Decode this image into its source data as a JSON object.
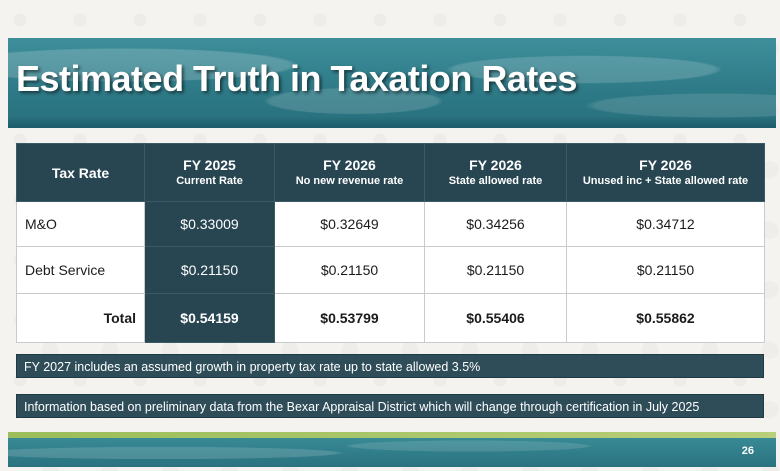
{
  "slide": {
    "title": "Estimated Truth in Taxation Rates",
    "page_number": "26"
  },
  "table": {
    "headers": [
      {
        "main": "Tax Rate",
        "sub": ""
      },
      {
        "main": "FY 2025",
        "sub": "Current Rate"
      },
      {
        "main": "FY 2026",
        "sub": "No new revenue rate"
      },
      {
        "main": "FY 2026",
        "sub": "State allowed rate"
      },
      {
        "main": "FY 2026",
        "sub": "Unused inc + State allowed rate"
      }
    ],
    "rows": [
      {
        "label": "M&O",
        "values": [
          "$0.33009",
          "$0.32649",
          "$0.34256",
          "$0.34712"
        ]
      },
      {
        "label": "Debt Service",
        "values": [
          "$0.21150",
          "$0.21150",
          "$0.21150",
          "$0.21150"
        ]
      },
      {
        "label": "Total",
        "values": [
          "$0.54159",
          "$0.53799",
          "$0.55406",
          "$0.55862"
        ]
      }
    ]
  },
  "notes": [
    "FY 2027 includes an assumed growth in property tax rate up to state allowed 3.5%",
    "Information based on preliminary data from the Bexar Appraisal District which will change through certification in July 2025"
  ],
  "colors": {
    "header_bg": "#274652",
    "title_band": "#2f7b88",
    "note_bg": "#2e4d59",
    "accent_green": "#9bbd5a"
  }
}
